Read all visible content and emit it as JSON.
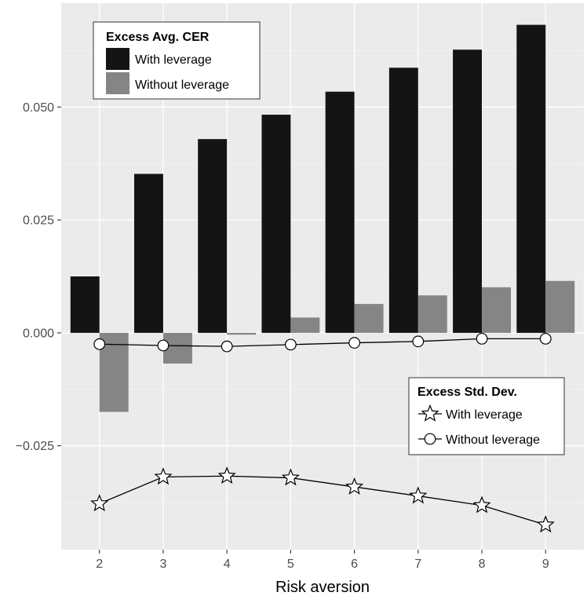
{
  "chart_data": {
    "type": "bar",
    "xlabel": "Risk aversion",
    "ylabel": "",
    "categories": [
      "2",
      "3",
      "4",
      "5",
      "6",
      "7",
      "8",
      "9"
    ],
    "ylim": [
      -0.048,
      0.073
    ],
    "yticks": [
      -0.025,
      0.0,
      0.025,
      0.05
    ],
    "ytick_labels": [
      "−0.025",
      "0.000",
      "0.025",
      "0.050"
    ],
    "grid": true,
    "bar_legend": {
      "title": "Excess Avg. CER",
      "position": "top-left",
      "entries": [
        "With leverage",
        "Without leverage"
      ]
    },
    "line_legend": {
      "title": "Excess Std. Dev.",
      "position": "bottom-right",
      "entries": [
        "With leverage",
        "Without leverage"
      ]
    },
    "bar_series": [
      {
        "name": "With leverage",
        "color": "#141414",
        "values": [
          0.0125,
          0.0352,
          0.0429,
          0.0483,
          0.0534,
          0.0587,
          0.0627,
          0.0682
        ]
      },
      {
        "name": "Without leverage",
        "color": "#858585",
        "values": [
          -0.0175,
          -0.0068,
          -0.0004,
          0.0034,
          0.0064,
          0.0083,
          0.0101,
          0.0115
        ]
      }
    ],
    "line_series": [
      {
        "name": "With leverage",
        "marker": "star",
        "values": [
          -0.0378,
          -0.0319,
          -0.0317,
          -0.0321,
          -0.0341,
          -0.0361,
          -0.0382,
          -0.0425
        ]
      },
      {
        "name": "Without leverage",
        "marker": "circle",
        "values": [
          -0.0025,
          -0.0028,
          -0.003,
          -0.0026,
          -0.0022,
          -0.0019,
          -0.0013,
          -0.0013
        ]
      }
    ]
  }
}
